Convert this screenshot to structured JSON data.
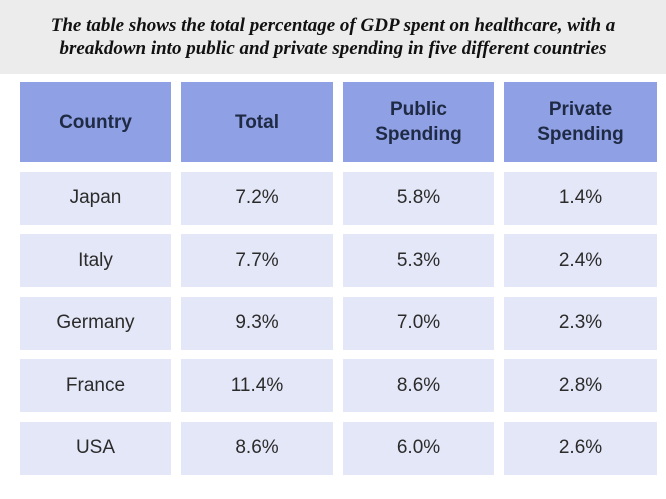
{
  "title": "The table shows the total percentage of GDP spent on healthcare, with a breakdown into public and private spending in five different countries",
  "table": {
    "header": [
      "Country",
      "Total",
      "Public Spending",
      "Private Spending"
    ],
    "rows": [
      [
        "Japan",
        "7.2%",
        "5.8%",
        "1.4%"
      ],
      [
        "Italy",
        "7.7%",
        "5.3%",
        "2.4%"
      ],
      [
        "Germany",
        "9.3%",
        "7.0%",
        "2.3%"
      ],
      [
        "France",
        "11.4%",
        "8.6%",
        "2.8%"
      ],
      [
        "USA",
        "8.6%",
        "6.0%",
        "2.6%"
      ]
    ]
  }
}
